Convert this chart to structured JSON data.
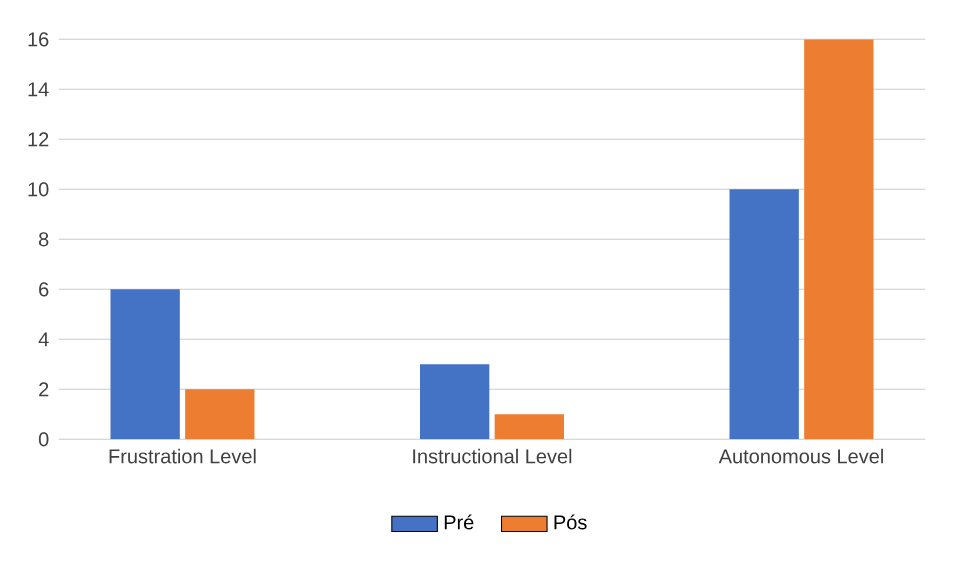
{
  "chart_data": {
    "type": "bar",
    "categories": [
      "Frustration Level",
      "Instructional Level",
      "Autonomous Level"
    ],
    "series": [
      {
        "name": "Pré",
        "color": "#4472c4",
        "values": [
          6,
          3,
          10
        ]
      },
      {
        "name": "Pós",
        "color": "#ed7d31",
        "values": [
          2,
          1,
          16
        ]
      }
    ],
    "ylim": [
      0,
      16
    ],
    "yticks": [
      0,
      2,
      4,
      6,
      8,
      10,
      12,
      14,
      16
    ],
    "grid": "y",
    "legend": "bottom"
  }
}
